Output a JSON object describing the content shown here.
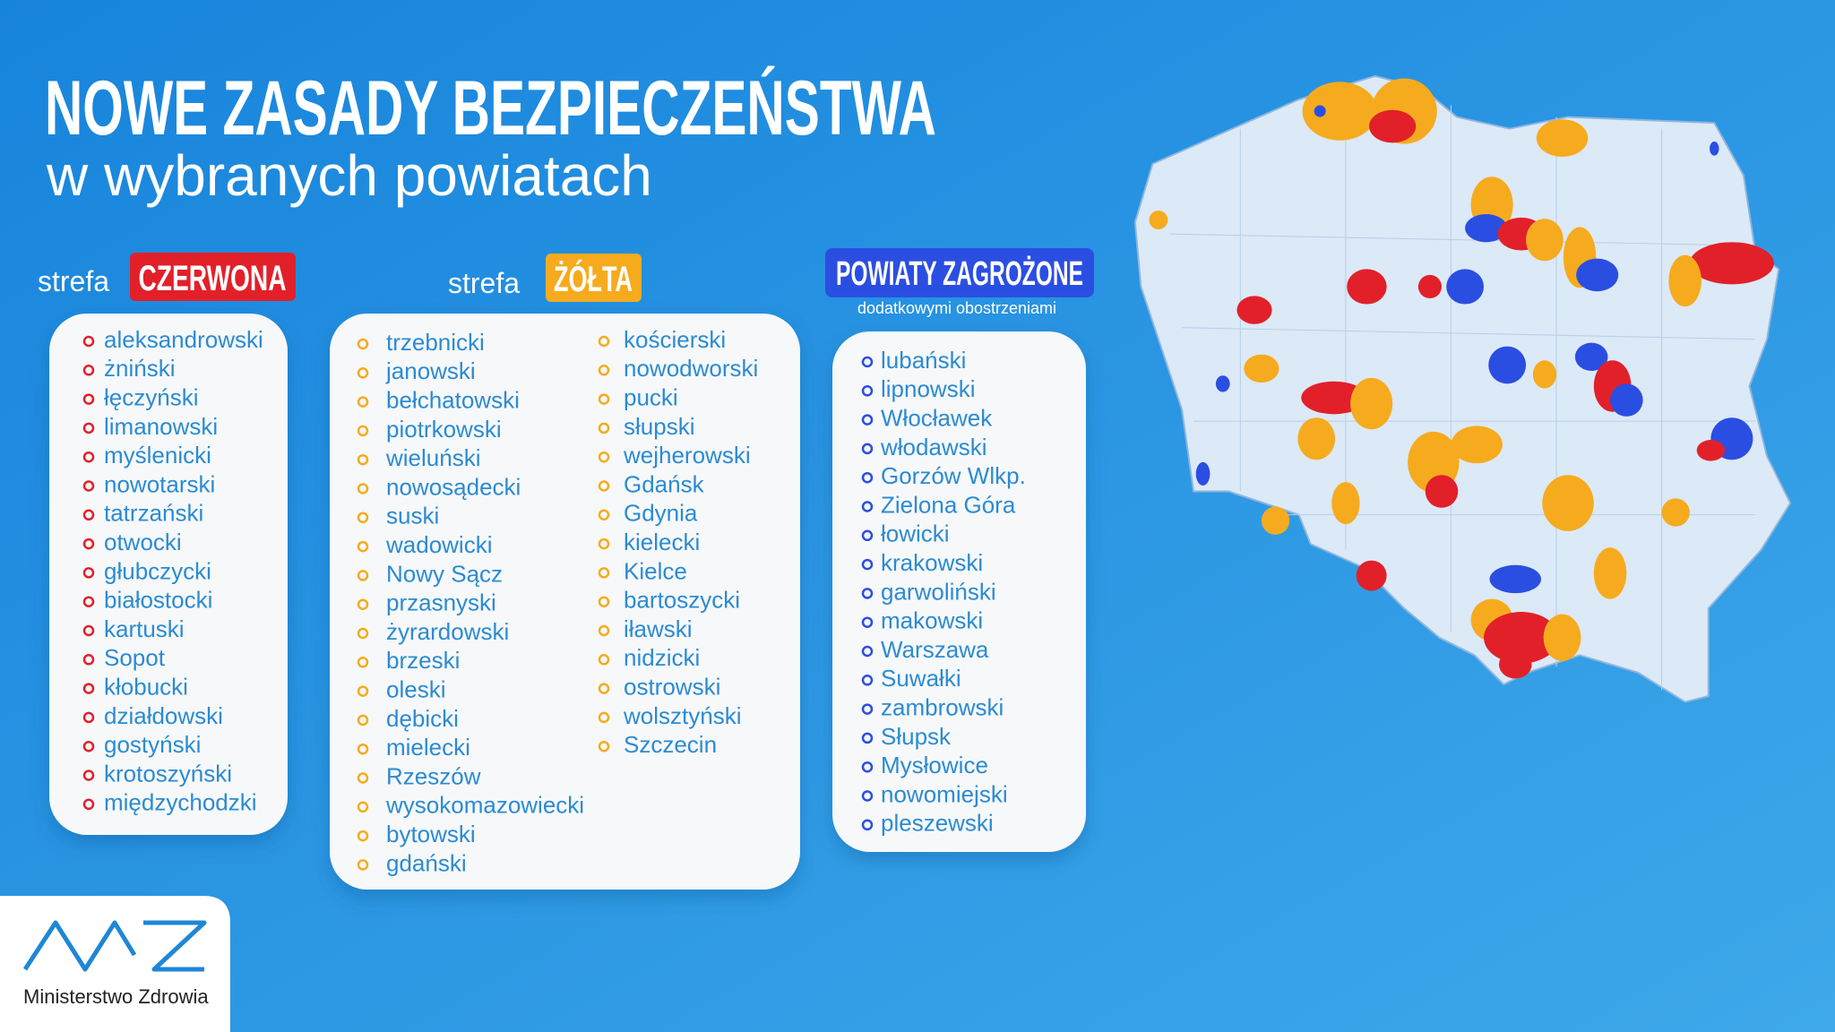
{
  "header": {
    "title": "NOWE ZASADY BEZPIECZEŃSTWA",
    "subtitle": "w wybranych powiatach"
  },
  "red_zone": {
    "prefix": "strefa",
    "label": "CZERWONA",
    "items": [
      "aleksandrowski",
      "żniński",
      "łęczyński",
      "limanowski",
      "myślenicki",
      "nowotarski",
      "tatrzański",
      "otwocki",
      "głubczycki",
      "białostocki",
      "kartuski",
      "Sopot",
      "kłobucki",
      "działdowski",
      "gostyński",
      "krotoszyński",
      "międzychodzki"
    ]
  },
  "yellow_zone": {
    "prefix": "strefa",
    "label": "ŻÓŁTA",
    "columns": [
      [
        "trzebnicki",
        "janowski",
        "bełchatowski",
        "piotrkowski",
        "wieluński",
        "nowosądecki",
        "suski",
        "wadowicki",
        "Nowy Sącz",
        "przasnyski",
        "żyrardowski",
        "brzeski",
        "oleski",
        "dębicki",
        "mielecki",
        "Rzeszów",
        "wysokomazowiecki",
        "bytowski",
        "gdański"
      ],
      [
        "kościerski",
        "nowodworski",
        "pucki",
        "słupski",
        "wejherowski",
        "Gdańsk",
        "Gdynia",
        "kielecki",
        "Kielce",
        "bartoszycki",
        "iławski",
        "nidzicki",
        "ostrowski",
        "wolsztyński",
        "Szczecin"
      ]
    ]
  },
  "threatened": {
    "title": "POWIATY ZAGROŻONE",
    "subtitle": "dodatkowymi obostrzeniami",
    "items": [
      "lubański",
      "lipnowski",
      "Włocławek",
      "włodawski",
      "Gorzów Wlkp.",
      "Zielona Góra",
      "łowicki",
      "krakowski",
      "garwoliński",
      "makowski",
      "Warszawa",
      "Suwałki",
      "zambrowski",
      "Słupsk",
      "Mysłowice",
      "nowomiejski",
      "pleszewski"
    ]
  },
  "logo": {
    "text": "Ministerstwo Zdrowia"
  }
}
